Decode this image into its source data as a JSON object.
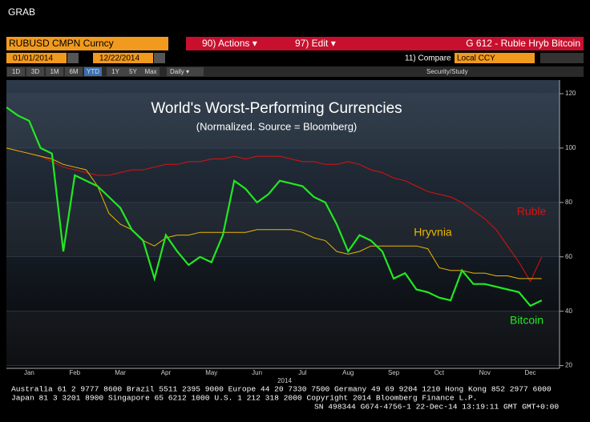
{
  "ui": {
    "window_title": "GRAB",
    "security": "RUBUSD CMPN Curncy",
    "actions": "90) Actions ▾",
    "edit": "97) Edit ▾",
    "graph_name": "G 612 - Ruble Hryb Bitcoin",
    "start_date": "01/01/2014",
    "end_date": "12/22/2014",
    "compare": "11) Compare",
    "currency": "Local CCY",
    "periods": [
      "1D",
      "3D",
      "1M",
      "6M",
      "YTD",
      "1Y",
      "5Y",
      "Max"
    ],
    "frequency": "Daily ▾",
    "study": "Security/Study",
    "footer": [
      "Australia 61 2 9777 8600 Brazil 5511 2395 9000 Europe 44 20 7330 7500 Germany 49 69 9204 1210 Hong Kong 852 2977 6000",
      "Japan 81 3 3201 8900      Singapore 65 6212 1000      U.S. 1 212 318 2000      Copyright 2014 Bloomberg Finance L.P.",
      "SN 498344 G674-4756-1 22-Dec-14 13:19:11 GMT GMT+0:00"
    ]
  },
  "chart_data": {
    "type": "line",
    "title": "World's Worst-Performing Currencies",
    "subtitle": "(Normalized. Source = Bloomberg)",
    "x_label": "2014",
    "categories": [
      null,
      null,
      "Jan",
      null,
      null,
      null,
      "Feb",
      null,
      null,
      null,
      "Mar",
      null,
      null,
      null,
      "Apr",
      null,
      null,
      null,
      "May",
      null,
      null,
      null,
      "Jun",
      null,
      null,
      null,
      "Jul",
      null,
      null,
      null,
      "Aug",
      null,
      null,
      null,
      "Sep",
      null,
      null,
      null,
      "Oct",
      null,
      null,
      null,
      "Nov",
      null,
      null,
      null,
      "Dec",
      null
    ],
    "series": [
      {
        "name": "Ruble",
        "color": "#e01010",
        "values": [
          100,
          99,
          98,
          97,
          95,
          93,
          92,
          91,
          90,
          90,
          91,
          92,
          92,
          93,
          94,
          94,
          95,
          95,
          96,
          96,
          97,
          96,
          97,
          97,
          97,
          96,
          95,
          95,
          94,
          94,
          95,
          94,
          92,
          91,
          89,
          88,
          86,
          84,
          83,
          82,
          80,
          77,
          74,
          70,
          64,
          58,
          51,
          60
        ]
      },
      {
        "name": "Hryvnia",
        "color": "#e8b800",
        "values": [
          100,
          99,
          98,
          97,
          96,
          94,
          93,
          92,
          86,
          76,
          72,
          70,
          66,
          64,
          67,
          68,
          68,
          69,
          69,
          69,
          69,
          69,
          70,
          70,
          70,
          70,
          69,
          67,
          66,
          62,
          61,
          62,
          64,
          64,
          64,
          64,
          64,
          63,
          56,
          55,
          55,
          54,
          54,
          53,
          53,
          52,
          52,
          52
        ]
      },
      {
        "name": "Bitcoin",
        "color": "#22e822",
        "values": [
          115,
          112,
          110,
          100,
          98,
          62,
          90,
          88,
          86,
          82,
          78,
          70,
          66,
          52,
          68,
          62,
          57,
          60,
          58,
          68,
          88,
          85,
          80,
          83,
          88,
          87,
          86,
          82,
          80,
          72,
          62,
          68,
          66,
          62,
          52,
          54,
          48,
          47,
          45,
          44,
          55,
          50,
          50,
          49,
          48,
          47,
          42,
          44
        ]
      }
    ],
    "ylim": [
      19,
      125
    ],
    "yticks": [
      20,
      40,
      60,
      80,
      100,
      120
    ],
    "grid": true
  }
}
